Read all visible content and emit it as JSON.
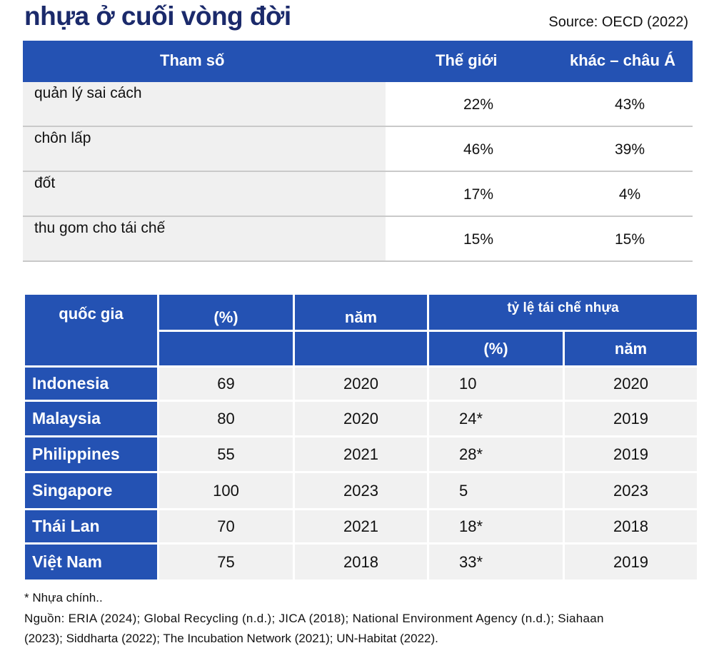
{
  "title": "nhựa ở cuối vòng đời",
  "source": "Source: OECD (2022)",
  "table1": {
    "headers": [
      "Tham số",
      "Thế giới",
      "khác – châu Á"
    ],
    "rows": [
      {
        "label": "quản lý sai cách",
        "world": "22%",
        "asia": "43%"
      },
      {
        "label": "chôn lấp",
        "world": "46%",
        "asia": "39%"
      },
      {
        "label": "đốt",
        "world": "17%",
        "asia": "4%"
      },
      {
        "label": "thu gom cho tái chế",
        "world": "15%",
        "asia": "15%"
      }
    ]
  },
  "table2": {
    "headers": {
      "country": "quốc gia",
      "pct": "(%)",
      "year": "năm",
      "recycle": "tỷ lệ tái chế nhựa",
      "rpct": "(%)",
      "ryear": "năm"
    },
    "rows": [
      {
        "country": "Indonesia",
        "pct": "69",
        "year": "2020",
        "rpct": "10",
        "ryear": "2020"
      },
      {
        "country": "Malaysia",
        "pct": "80",
        "year": "2020",
        "rpct": "24*",
        "ryear": "2019"
      },
      {
        "country": "Philippines",
        "pct": "55",
        "year": "2021",
        "rpct": "28*",
        "ryear": "2019"
      },
      {
        "country": "Singapore",
        "pct": "100",
        "year": "2023",
        "rpct": "5",
        "ryear": "2023"
      },
      {
        "country": "Thái Lan",
        "pct": "70",
        "year": "2021",
        "rpct": "18*",
        "ryear": "2018"
      },
      {
        "country": "Việt Nam",
        "pct": "75",
        "year": "2018",
        "rpct": "33*",
        "ryear": "2019"
      }
    ]
  },
  "footnote": "* Nhựa chính..",
  "sources_line1": "Nguồn: ERIA (2024); Global Recycling (n.d.); JICA (2018); National Environment Agency (n.d.); Siahaan",
  "sources_line2": "(2023); Siddharta (2022); The Incubation Network (2021); UN-Habitat (2022)."
}
